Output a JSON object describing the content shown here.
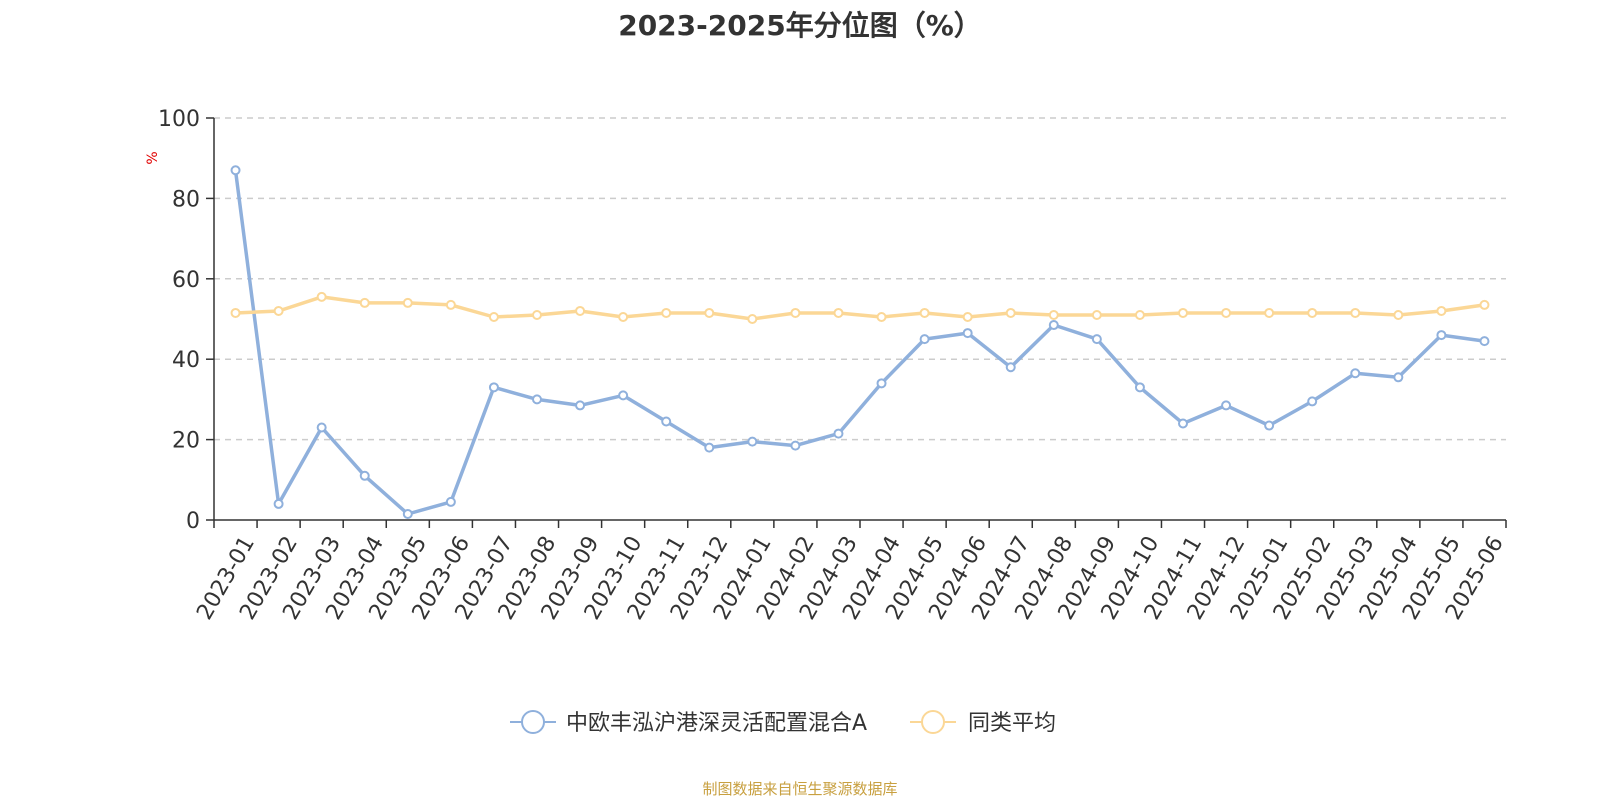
{
  "chart_data": {
    "type": "line",
    "title": "2023-2025年分位图（%）",
    "ylabel": "%",
    "xlabel": "",
    "ylim": [
      0,
      100
    ],
    "yticks": [
      0,
      20,
      40,
      60,
      80,
      100
    ],
    "grid": "horizontal-dashed",
    "legend_position": "bottom-center",
    "categories": [
      "2023-01",
      "2023-02",
      "2023-03",
      "2023-04",
      "2023-05",
      "2023-06",
      "2023-07",
      "2023-08",
      "2023-09",
      "2023-10",
      "2023-11",
      "2023-12",
      "2024-01",
      "2024-02",
      "2024-03",
      "2024-04",
      "2024-05",
      "2024-06",
      "2024-07",
      "2024-08",
      "2024-09",
      "2024-10",
      "2024-11",
      "2024-12",
      "2025-01",
      "2025-02",
      "2025-03",
      "2025-04",
      "2025-05",
      "2025-06"
    ],
    "series": [
      {
        "name": "中欧丰泓沪港深灵活配置混合A",
        "color": "#8fb0dc",
        "values": [
          87,
          4,
          23,
          11,
          1.5,
          4.5,
          33,
          30,
          28.5,
          31,
          24.5,
          18,
          19.5,
          18.5,
          21.5,
          34,
          45,
          46.5,
          38,
          48.5,
          45,
          33,
          24,
          28.5,
          23.5,
          29.5,
          36.5,
          35.5,
          46,
          44.5
        ]
      },
      {
        "name": "同类平均",
        "color": "#fbd796",
        "values": [
          51.5,
          52,
          55.5,
          54,
          54,
          53.5,
          50.5,
          51,
          52,
          50.5,
          51.5,
          51.5,
          50,
          51.5,
          51.5,
          50.5,
          51.5,
          50.5,
          51.5,
          51,
          51,
          51,
          51.5,
          51.5,
          51.5,
          51.5,
          51.5,
          51,
          52,
          53.5
        ]
      }
    ]
  },
  "footer": {
    "source": "制图数据来自恒生聚源数据库"
  }
}
